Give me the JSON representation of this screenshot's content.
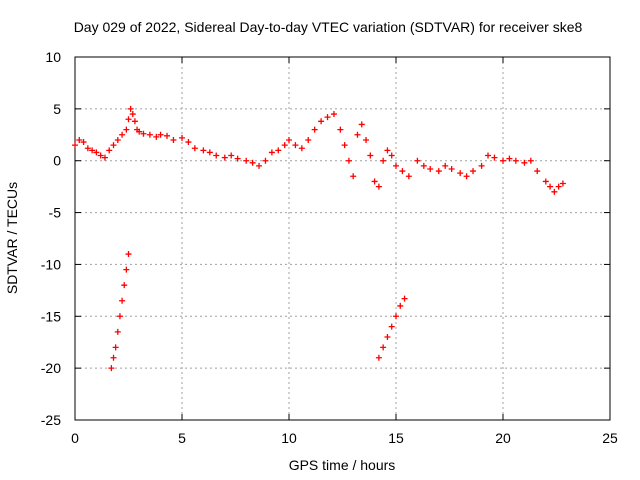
{
  "chart_data": {
    "type": "scatter",
    "title": "Day 029 of 2022, Sidereal Day-to-day VTEC variation (SDTVAR) for receiver ske8",
    "xlabel": "GPS time / hours",
    "ylabel": "SDTVAR / TECUs",
    "xlim": [
      0,
      25
    ],
    "ylim": [
      -25,
      10
    ],
    "xticks": [
      0,
      5,
      10,
      15,
      20,
      25
    ],
    "yticks": [
      10,
      5,
      0,
      -5,
      -10,
      -15,
      -20,
      -25
    ],
    "grid": true,
    "marker": "+",
    "color": "#ff0000",
    "series": [
      {
        "name": "main",
        "x": [
          0.0,
          0.2,
          0.4,
          0.6,
          0.8,
          1.0,
          1.2,
          1.4,
          1.6,
          1.8,
          2.0,
          2.2,
          2.4,
          2.5,
          2.6,
          2.7,
          2.8,
          2.9,
          3.0,
          3.2,
          3.5,
          3.8,
          4.0,
          4.3,
          4.6,
          5.0,
          5.3,
          5.6,
          6.0,
          6.3,
          6.6,
          7.0,
          7.3,
          7.6,
          8.0,
          8.3,
          8.6,
          8.9,
          9.2,
          9.5,
          9.8,
          10.0,
          10.3,
          10.6,
          10.9,
          11.2,
          11.5,
          11.8,
          12.1,
          12.4,
          12.6,
          12.8,
          13.0,
          13.2,
          13.4,
          13.6,
          13.8,
          14.0,
          14.2,
          14.4,
          14.6,
          14.8,
          15.0,
          15.3,
          15.6,
          16.0,
          16.3,
          16.6,
          17.0,
          17.3,
          17.6,
          18.0,
          18.3,
          18.6,
          19.0,
          19.3,
          19.6,
          20.0,
          20.3,
          20.6,
          21.0,
          21.3,
          21.6,
          22.0,
          22.2,
          22.4,
          22.6,
          22.8
        ],
        "y": [
          1.5,
          2.0,
          1.8,
          1.2,
          1.0,
          0.8,
          0.5,
          0.3,
          1.0,
          1.5,
          2.0,
          2.5,
          3.0,
          4.0,
          5.0,
          4.5,
          3.8,
          3.0,
          2.8,
          2.6,
          2.5,
          2.3,
          2.5,
          2.4,
          2.0,
          2.2,
          1.8,
          1.2,
          1.0,
          0.8,
          0.5,
          0.3,
          0.5,
          0.2,
          0.0,
          -0.2,
          -0.5,
          0.0,
          0.8,
          1.0,
          1.5,
          2.0,
          1.5,
          1.2,
          2.0,
          3.0,
          3.8,
          4.2,
          4.5,
          3.0,
          1.5,
          0.0,
          -1.5,
          2.5,
          3.5,
          2.0,
          0.5,
          -2.0,
          -2.5,
          0.0,
          1.0,
          0.5,
          -0.5,
          -1.0,
          -1.5,
          0.0,
          -0.5,
          -0.8,
          -1.0,
          -0.5,
          -0.8,
          -1.2,
          -1.5,
          -1.0,
          -0.5,
          0.5,
          0.3,
          0.0,
          0.2,
          0.0,
          -0.2,
          0.0,
          -1.0,
          -2.0,
          -2.5,
          -3.0,
          -2.5,
          -2.2
        ]
      },
      {
        "name": "segment-1",
        "x": [
          1.7,
          1.8,
          1.9,
          2.0,
          2.1,
          2.2,
          2.3,
          2.4,
          2.5
        ],
        "y": [
          -20.0,
          -19.0,
          -18.0,
          -16.5,
          -15.0,
          -13.5,
          -12.0,
          -10.5,
          -9.0
        ]
      },
      {
        "name": "segment-2",
        "x": [
          14.2,
          14.4,
          14.6,
          14.8,
          15.0,
          15.2,
          15.4
        ],
        "y": [
          -19.0,
          -18.0,
          -17.0,
          -16.0,
          -15.0,
          -14.0,
          -13.3
        ]
      }
    ]
  }
}
